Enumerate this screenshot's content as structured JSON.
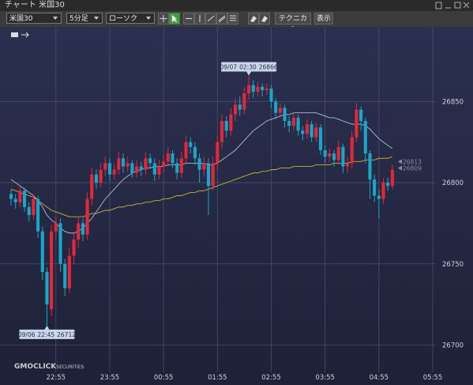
{
  "ui": {
    "window_title": "チャート 米国30",
    "symbol": "米国30",
    "interval": "5分足",
    "chart_style": "ローソク",
    "technical": "テクニカル",
    "display": "表示",
    "brand": "GMOCLICK",
    "brand_sub": "SECURITIES"
  },
  "chart_data": {
    "type": "candlestick",
    "categories": [
      null,
      null,
      null,
      null,
      null,
      null,
      null,
      null,
      null,
      null,
      "22:55",
      null,
      null,
      null,
      null,
      null,
      null,
      null,
      null,
      null,
      null,
      null,
      "23:55",
      null,
      null,
      null,
      null,
      null,
      null,
      null,
      null,
      null,
      null,
      null,
      "00:55",
      null,
      null,
      null,
      null,
      null,
      null,
      null,
      null,
      null,
      null,
      null,
      "01:55",
      null,
      null,
      null,
      null,
      null,
      null,
      null,
      null,
      null,
      null,
      null,
      "02:55",
      null,
      null,
      null,
      null,
      null,
      null,
      null,
      null,
      null,
      null,
      null,
      "03:55",
      null,
      null,
      null,
      null,
      null,
      null,
      null,
      null,
      null,
      null,
      null,
      "04:55",
      null,
      null,
      null,
      null,
      null,
      null,
      null,
      null,
      null,
      null,
      null,
      "05:55"
    ],
    "open": [
      26793,
      26790,
      26788,
      26795,
      26785,
      26780,
      26790,
      26770,
      26745,
      26722,
      26770,
      26775,
      26750,
      26735,
      26755,
      26765,
      26775,
      26768,
      26790,
      26805,
      26800,
      26808,
      26812,
      26805,
      26808,
      26815,
      26810,
      26812,
      26806,
      26810,
      26808,
      26815,
      26812,
      26805,
      26810,
      26813,
      26818,
      26812,
      26806,
      26815,
      26825,
      26822,
      26815,
      26808,
      26812,
      26798,
      26812,
      26825,
      26838,
      26832,
      26842,
      26848,
      26845,
      26855,
      26860,
      26856,
      26859,
      26857,
      26858,
      26850,
      26843,
      26846,
      26838,
      26835,
      26840,
      26832,
      26830,
      26836,
      26828,
      26834,
      26820,
      26816,
      26818,
      26814,
      26822,
      26810,
      26812,
      26828,
      26845,
      26838,
      26818,
      26802,
      26792,
      26790,
      26800,
      26798,
      null,
      null,
      null,
      null,
      null,
      null,
      null,
      null,
      null
    ],
    "high": [
      26796,
      26793,
      26798,
      26797,
      26788,
      26793,
      26792,
      26773,
      26748,
      26774,
      26779,
      26778,
      26753,
      26760,
      26769,
      26779,
      26778,
      26794,
      26809,
      26808,
      26812,
      26816,
      26815,
      26812,
      26819,
      26818,
      26816,
      26814,
      26814,
      26813,
      26819,
      26818,
      26815,
      26814,
      26817,
      26822,
      26820,
      26815,
      26819,
      26829,
      26828,
      26825,
      26818,
      26816,
      26815,
      26816,
      26829,
      26842,
      26841,
      26846,
      26852,
      26853,
      26859,
      26866,
      26863,
      26862,
      26861,
      26861,
      26860,
      26852,
      26849,
      26848,
      26841,
      26843,
      26842,
      26835,
      26839,
      26838,
      26837,
      26836,
      26823,
      26821,
      26820,
      26826,
      26824,
      26816,
      26832,
      26849,
      26847,
      26840,
      26820,
      26805,
      26796,
      26803,
      26803,
      26811,
      null,
      null,
      null,
      null,
      null,
      null,
      null,
      null,
      null
    ],
    "low": [
      26786,
      26784,
      26785,
      26782,
      26776,
      26777,
      26766,
      26740,
      26712,
      26718,
      26766,
      26745,
      26730,
      26732,
      26750,
      26760,
      26764,
      26765,
      26786,
      26796,
      26797,
      26804,
      26801,
      26802,
      26805,
      26806,
      26807,
      26803,
      26803,
      26804,
      26805,
      26809,
      26801,
      26802,
      26806,
      26810,
      26809,
      26802,
      26803,
      26812,
      26818,
      26811,
      26800,
      26804,
      26780,
      26795,
      26808,
      26821,
      26828,
      26829,
      26838,
      26841,
      26842,
      26851,
      26852,
      26853,
      26853,
      26854,
      26846,
      26839,
      26840,
      26834,
      26831,
      26832,
      26829,
      26826,
      26827,
      26825,
      26825,
      26817,
      26812,
      26813,
      26810,
      26811,
      26806,
      26806,
      26809,
      26825,
      26832,
      26812,
      26790,
      26788,
      26778,
      26787,
      26795,
      26796,
      null,
      null,
      null,
      null,
      null,
      null,
      null,
      null,
      null
    ],
    "close": [
      26790,
      26788,
      26795,
      26785,
      26780,
      26790,
      26770,
      26745,
      26725,
      26770,
      26775,
      26750,
      26735,
      26755,
      26765,
      26775,
      26768,
      26790,
      26805,
      26800,
      26808,
      26812,
      26805,
      26808,
      26815,
      26810,
      26812,
      26806,
      26810,
      26808,
      26815,
      26812,
      26805,
      26810,
      26813,
      26818,
      26812,
      26806,
      26815,
      26825,
      26822,
      26815,
      26808,
      26812,
      26798,
      26812,
      26825,
      26838,
      26832,
      26842,
      26848,
      26845,
      26855,
      26860,
      26856,
      26859,
      26857,
      26858,
      26850,
      26843,
      26846,
      26838,
      26835,
      26840,
      26832,
      26830,
      26836,
      26828,
      26834,
      26820,
      26816,
      26818,
      26814,
      26822,
      26810,
      26812,
      26828,
      26845,
      26838,
      26818,
      26802,
      26792,
      26790,
      26800,
      26798,
      26808,
      null,
      null,
      null,
      null,
      null,
      null,
      null,
      null,
      null
    ],
    "up_color": "#e3283b",
    "down_color": "#1aa6c9",
    "series": [
      {
        "color": "#a8c2d6",
        "values": [
          26802,
          26800,
          26798,
          26796,
          26794,
          26792,
          26789,
          26785,
          26780,
          26777,
          26775,
          26772,
          26770,
          26769,
          26769,
          26770,
          26772,
          26775,
          26778,
          26782,
          26786,
          26790,
          26793,
          26796,
          26799,
          26802,
          26804,
          26806,
          26807,
          26808,
          26809,
          26809,
          26810,
          26810,
          26810,
          26811,
          26811,
          26811,
          26811,
          26812,
          26812,
          26812,
          26812,
          26812,
          26811,
          26811,
          26812,
          26814,
          26816,
          26818,
          26820,
          26823,
          26826,
          26829,
          26832,
          26834,
          26836,
          26838,
          26839,
          26840,
          26841,
          26842,
          26842,
          26843,
          26843,
          26843,
          26843,
          26843,
          26843,
          26842,
          26841,
          26840,
          26840,
          26839,
          26838,
          26837,
          26836,
          26836,
          26836,
          26835,
          26833,
          26830,
          26827,
          26825,
          26823,
          26821,
          null,
          null,
          null,
          null,
          null,
          null,
          null,
          null,
          null
        ]
      },
      {
        "color": "#c9b43a",
        "values": [
          26796,
          26795,
          26794,
          26793,
          26792,
          26791,
          26789,
          26787,
          26785,
          26783,
          26782,
          26781,
          26780,
          26779,
          26779,
          26779,
          26779,
          26780,
          26781,
          26781,
          26782,
          26783,
          26783,
          26784,
          26785,
          26785,
          26786,
          26786,
          26787,
          26787,
          26788,
          26788,
          26789,
          26789,
          26790,
          26790,
          26791,
          26792,
          26792,
          26793,
          26794,
          26794,
          26795,
          26795,
          26796,
          26797,
          26798,
          26799,
          26800,
          26801,
          26802,
          26803,
          26804,
          26805,
          26806,
          26806,
          26807,
          26807,
          26808,
          26808,
          26809,
          26809,
          26809,
          26810,
          26810,
          26810,
          26810,
          26810,
          26811,
          26811,
          26811,
          26811,
          26812,
          26812,
          26812,
          26812,
          26813,
          26813,
          26813,
          26814,
          26814,
          26814,
          26815,
          26815,
          26815,
          26816,
          null,
          null,
          null,
          null,
          null,
          null,
          null,
          null,
          null
        ]
      }
    ],
    "price_markers": [
      {
        "value": 26813,
        "color": "#8a8f9c"
      },
      {
        "value": 26809,
        "color": "#8a8f9c"
      }
    ],
    "annotations": [
      {
        "date": "09/07",
        "time": "02:30",
        "value": 26866
      },
      {
        "date": "09/06",
        "time": "22:45",
        "value": 26712
      }
    ],
    "ylim": [
      26691,
      26893
    ],
    "yticks": [
      26700,
      26750,
      26800,
      26850
    ],
    "grid": true
  }
}
